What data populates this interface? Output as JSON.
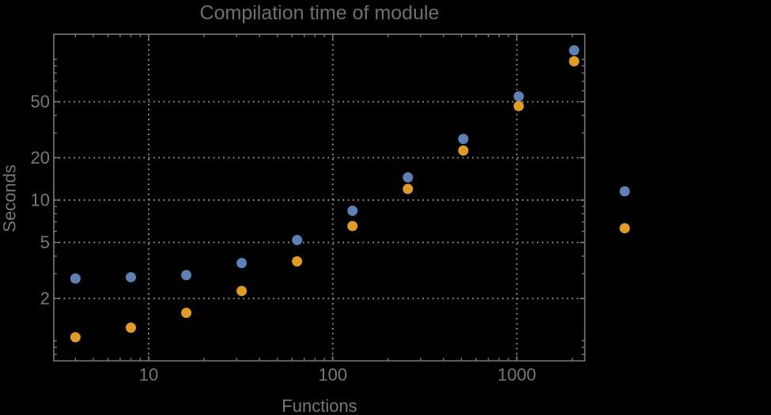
{
  "chart_data": {
    "type": "scatter",
    "title": "Compilation time of module",
    "xlabel": "Functions",
    "ylabel": "Seconds",
    "xscale": "log",
    "yscale": "log",
    "xlim": [
      3.05,
      2340
    ],
    "ylim": [
      0.72,
      151
    ],
    "grid": "dotted",
    "x": [
      4,
      8,
      16,
      32,
      64,
      128,
      256,
      512,
      1024,
      2048
    ],
    "series": [
      {
        "name": "blue",
        "color": "#5e81b5",
        "values": [
          2.77,
          2.83,
          2.93,
          3.57,
          5.2,
          8.4,
          14.5,
          27.2,
          54.6,
          116
        ]
      },
      {
        "name": "orange",
        "color": "#e19c24",
        "values": [
          1.06,
          1.24,
          1.58,
          2.26,
          3.67,
          6.54,
          12.0,
          22.5,
          46.6,
          97
        ]
      }
    ],
    "x_tick_values": [
      10,
      100,
      1000
    ],
    "x_tick_labels": [
      "10",
      "100",
      "1000"
    ],
    "y_tick_values": [
      2,
      5,
      10,
      20,
      50
    ],
    "y_tick_labels": [
      "2",
      "5",
      "10",
      "20",
      "50"
    ],
    "legend": {
      "position": "outside-right",
      "labels_visible": false,
      "markers": [
        {
          "series": "blue",
          "color": "#5e81b5"
        },
        {
          "series": "orange",
          "color": "#e19c24"
        }
      ]
    }
  },
  "colors": {
    "background": "#000000",
    "frame": "#818181",
    "grid": "#9b9b9b",
    "text": "#777777",
    "title": "#6f6f6f"
  }
}
